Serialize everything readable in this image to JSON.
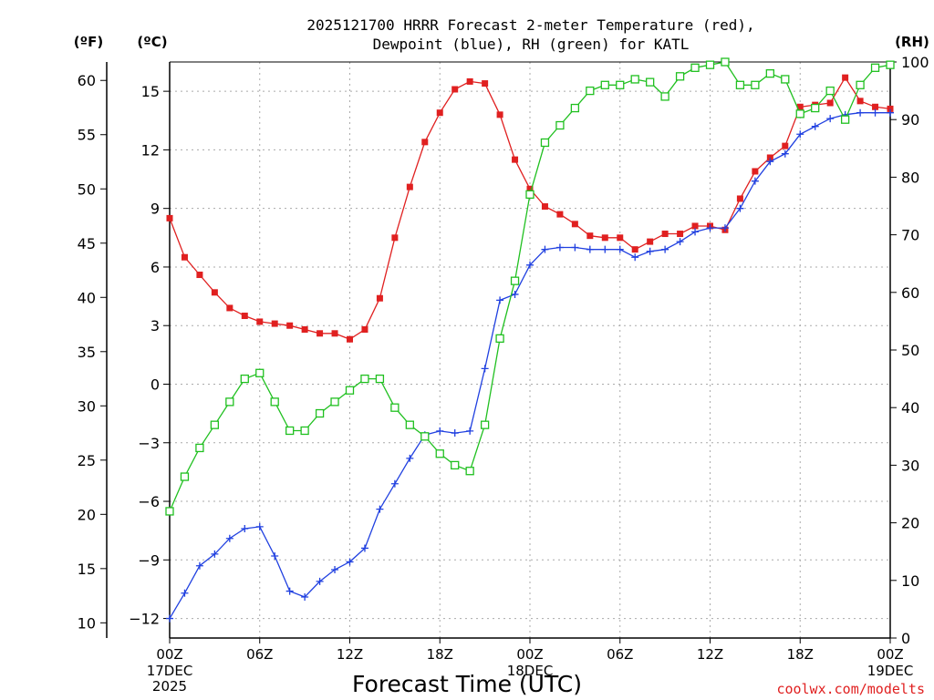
{
  "chart_data": {
    "type": "line",
    "title_line1": "2025121700 HRRR Forecast 2-meter Temperature (red),",
    "title_line2": "Dewpoint (blue), RH (green) for KATL",
    "xlabel": "Forecast Time (UTC)",
    "credit": "coolwx.com/modelts",
    "left_unit_f": "(ºF)",
    "left_unit_c": "(ºC)",
    "right_unit": "(RH)",
    "x_forecast_hours_range": [
      0,
      48
    ],
    "y_celsius_range": [
      -13,
      16.5
    ],
    "y_rh_range": [
      0,
      100
    ],
    "x_ticks": [
      {
        "hour": 0,
        "label": "00Z",
        "sub": [
          "17DEC",
          "2025"
        ]
      },
      {
        "hour": 6,
        "label": "06Z",
        "sub": []
      },
      {
        "hour": 12,
        "label": "12Z",
        "sub": []
      },
      {
        "hour": 18,
        "label": "18Z",
        "sub": []
      },
      {
        "hour": 24,
        "label": "00Z",
        "sub": [
          "18DEC"
        ]
      },
      {
        "hour": 30,
        "label": "06Z",
        "sub": []
      },
      {
        "hour": 36,
        "label": "12Z",
        "sub": []
      },
      {
        "hour": 42,
        "label": "18Z",
        "sub": []
      },
      {
        "hour": 48,
        "label": "00Z",
        "sub": [
          "19DEC"
        ]
      }
    ],
    "y_ticks_celsius": [
      -12,
      -9,
      -6,
      -3,
      0,
      3,
      6,
      9,
      12,
      15
    ],
    "y_ticks_fahrenheit": [
      10,
      15,
      20,
      25,
      30,
      35,
      40,
      45,
      50,
      55,
      60
    ],
    "y_ticks_rh": [
      0,
      10,
      20,
      30,
      40,
      50,
      60,
      70,
      80,
      90,
      100
    ],
    "grid": true,
    "x_hours": [
      0,
      1,
      2,
      3,
      4,
      5,
      6,
      7,
      8,
      9,
      10,
      11,
      12,
      13,
      14,
      15,
      16,
      17,
      18,
      19,
      20,
      21,
      22,
      23,
      24,
      25,
      26,
      27,
      28,
      29,
      30,
      31,
      32,
      33,
      34,
      35,
      36,
      37,
      38,
      39,
      40,
      41,
      42,
      43,
      44,
      45,
      46,
      47,
      48
    ],
    "series": [
      {
        "label": "Temperature",
        "unit": "C",
        "color": "#e02020",
        "marker": "filled-square",
        "values": [
          8.5,
          6.5,
          5.6,
          4.7,
          3.9,
          3.5,
          3.2,
          3.1,
          3.0,
          2.8,
          2.6,
          2.6,
          2.3,
          2.8,
          4.4,
          7.5,
          10.1,
          12.4,
          13.9,
          15.1,
          15.5,
          15.4,
          13.8,
          11.5,
          10.0,
          9.1,
          8.7,
          8.2,
          7.6,
          7.5,
          7.5,
          6.9,
          7.3,
          7.7,
          7.7,
          8.1,
          8.1,
          7.9,
          9.5,
          10.9,
          11.6,
          12.2,
          14.2,
          14.3,
          14.4,
          15.7,
          14.5,
          14.2,
          14.1
        ]
      },
      {
        "label": "Dewpoint",
        "unit": "C",
        "color": "#2040e0",
        "marker": "plus",
        "values": [
          -12.0,
          -10.7,
          -9.3,
          -8.7,
          -7.9,
          -7.4,
          -7.3,
          -8.8,
          -10.6,
          -10.9,
          -10.1,
          -9.5,
          -9.1,
          -8.4,
          -6.4,
          -5.1,
          -3.8,
          -2.6,
          -2.4,
          -2.5,
          -2.4,
          0.8,
          4.3,
          4.6,
          6.1,
          6.9,
          7.0,
          7.0,
          6.9,
          6.9,
          6.9,
          6.5,
          6.8,
          6.9,
          7.3,
          7.8,
          8.0,
          8.0,
          9.0,
          10.4,
          11.4,
          11.8,
          12.8,
          13.2,
          13.6,
          13.8,
          13.9,
          13.9,
          13.9
        ]
      },
      {
        "label": "RH",
        "unit": "%",
        "color": "#20c020",
        "marker": "open-square",
        "values": [
          22,
          28,
          33,
          37,
          41,
          45,
          46,
          41,
          36,
          36,
          39,
          41,
          43,
          45,
          45,
          40,
          37,
          35,
          32,
          30,
          29,
          37,
          52,
          62,
          77,
          86,
          89,
          92,
          95,
          96,
          96,
          97,
          96.5,
          94,
          97.5,
          99,
          99.5,
          100,
          96,
          96,
          98,
          97,
          91,
          92,
          95,
          90,
          96,
          99,
          99.5
        ]
      }
    ]
  }
}
